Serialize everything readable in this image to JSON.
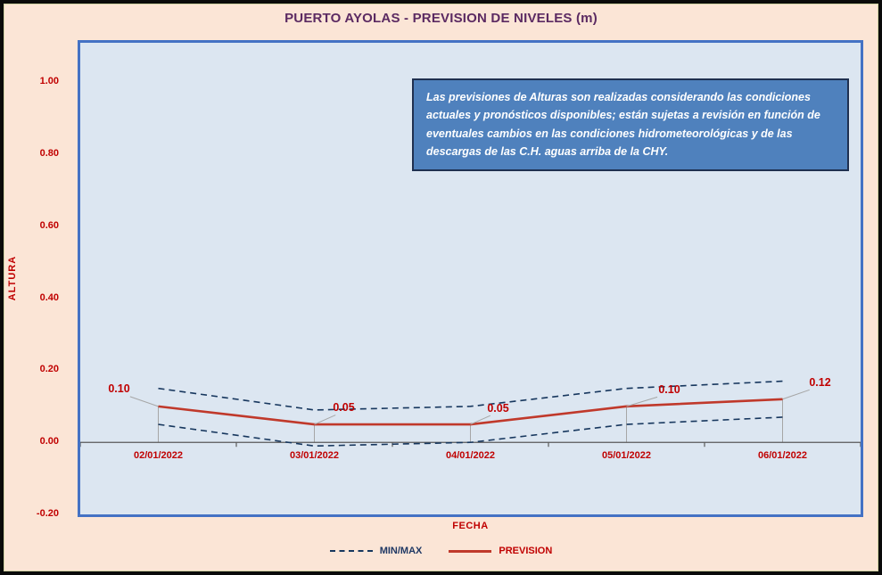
{
  "title": "PUERTO AYOLAS - PREVISION DE NIVELES (m)",
  "annotation": {
    "text": "Las previsiones de Alturas son realizadas considerando las condiciones actuales y pronósticos disponibles;  están sujetas a revisión en función de eventuales cambios en las condiciones hidrometeorológicas y de las descargas de las C.H. aguas arriba de la CHY."
  },
  "legend": {
    "minmax": "MIN/MAX",
    "prevision": "PREVISION"
  },
  "colors": {
    "background": "#FBE5D6",
    "plot_background": "#DCE6F1",
    "plot_border": "#4472C4",
    "axis_text": "#C00000",
    "title_text": "#5B2A62",
    "prevision_line": "#C0392B",
    "minmax_line": "#17375E",
    "note_background": "#4F81BD",
    "note_border": "#1F3050",
    "note_text": "#FFFFFF",
    "leader_line": "#A6A6A6",
    "axis_line": "#595959"
  },
  "chart_data": {
    "type": "line",
    "title": "PUERTO AYOLAS - PREVISION DE NIVELES (m)",
    "xlabel": "FECHA",
    "ylabel": "ALTURA",
    "categories": [
      "02/01/2022",
      "03/01/2022",
      "04/01/2022",
      "05/01/2022",
      "06/01/2022"
    ],
    "series": [
      {
        "name": "MAX",
        "style": "dashed",
        "color": "#17375E",
        "values": [
          0.15,
          0.09,
          0.1,
          0.15,
          0.17
        ]
      },
      {
        "name": "PREVISION",
        "style": "solid",
        "color": "#C0392B",
        "values": [
          0.1,
          0.05,
          0.05,
          0.1,
          0.12
        ]
      },
      {
        "name": "MIN",
        "style": "dashed",
        "color": "#17375E",
        "values": [
          0.05,
          -0.01,
          0.0,
          0.05,
          0.07
        ]
      }
    ],
    "data_labels": [
      "0.10",
      "0.05",
      "0.05",
      "0.10",
      "0.12"
    ],
    "yticks": [
      "1.00",
      "0.80",
      "0.60",
      "0.40",
      "0.20",
      "0.00",
      "-0.20"
    ],
    "ylim": [
      -0.2,
      1.11
    ],
    "grid": false,
    "legend_position": "bottom"
  }
}
